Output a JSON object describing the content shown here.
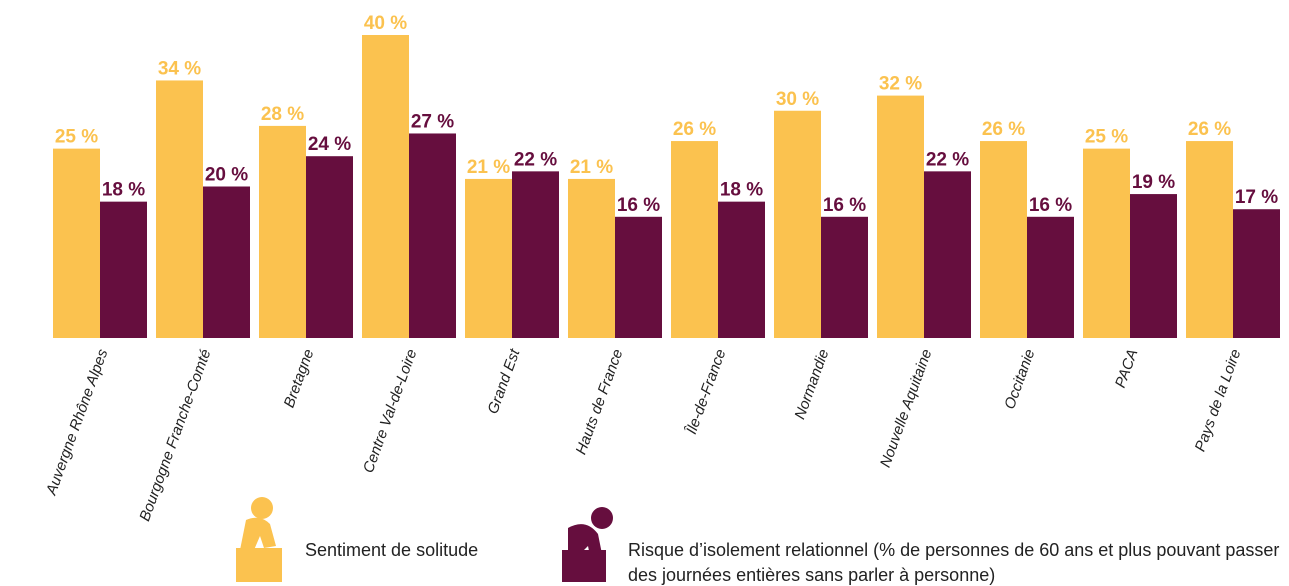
{
  "chart_data": {
    "type": "bar",
    "categories": [
      "Auvergne Rhône Alpes",
      "Bourgogne Franche-Comté",
      "Bretagne",
      "Centre Val-de-Loire",
      "Grand Est",
      "Hauts de France",
      "Île-de-France",
      "Normandie",
      "Nouvelle Aquitaine",
      "Occitanie",
      "PACA",
      "Pays de la Loire"
    ],
    "series": [
      {
        "name": "Sentiment de solitude",
        "color": "#fbc24f",
        "values": [
          25,
          34,
          28,
          40,
          21,
          21,
          26,
          30,
          32,
          26,
          25,
          26
        ],
        "value_labels": [
          "25 %",
          "34 %",
          "28 %",
          "40 %",
          "21 %",
          "21 %",
          "26 %",
          "30 %",
          "32 %",
          "26 %",
          "25 %",
          "26 %"
        ]
      },
      {
        "name": "Risque d’isolement relationnel (% de personnes de 60 ans et plus pouvant passer des journées entières sans parler à personne)",
        "color": "#660e3e",
        "values": [
          18,
          20,
          24,
          27,
          22,
          16,
          18,
          16,
          22,
          16,
          19,
          17
        ],
        "value_labels": [
          "18 %",
          "20 %",
          "24 %",
          "27 %",
          "22 %",
          "16 %",
          "18 %",
          "16 %",
          "22 %",
          "16 %",
          "19 %",
          "17 %"
        ]
      }
    ]
  }
}
